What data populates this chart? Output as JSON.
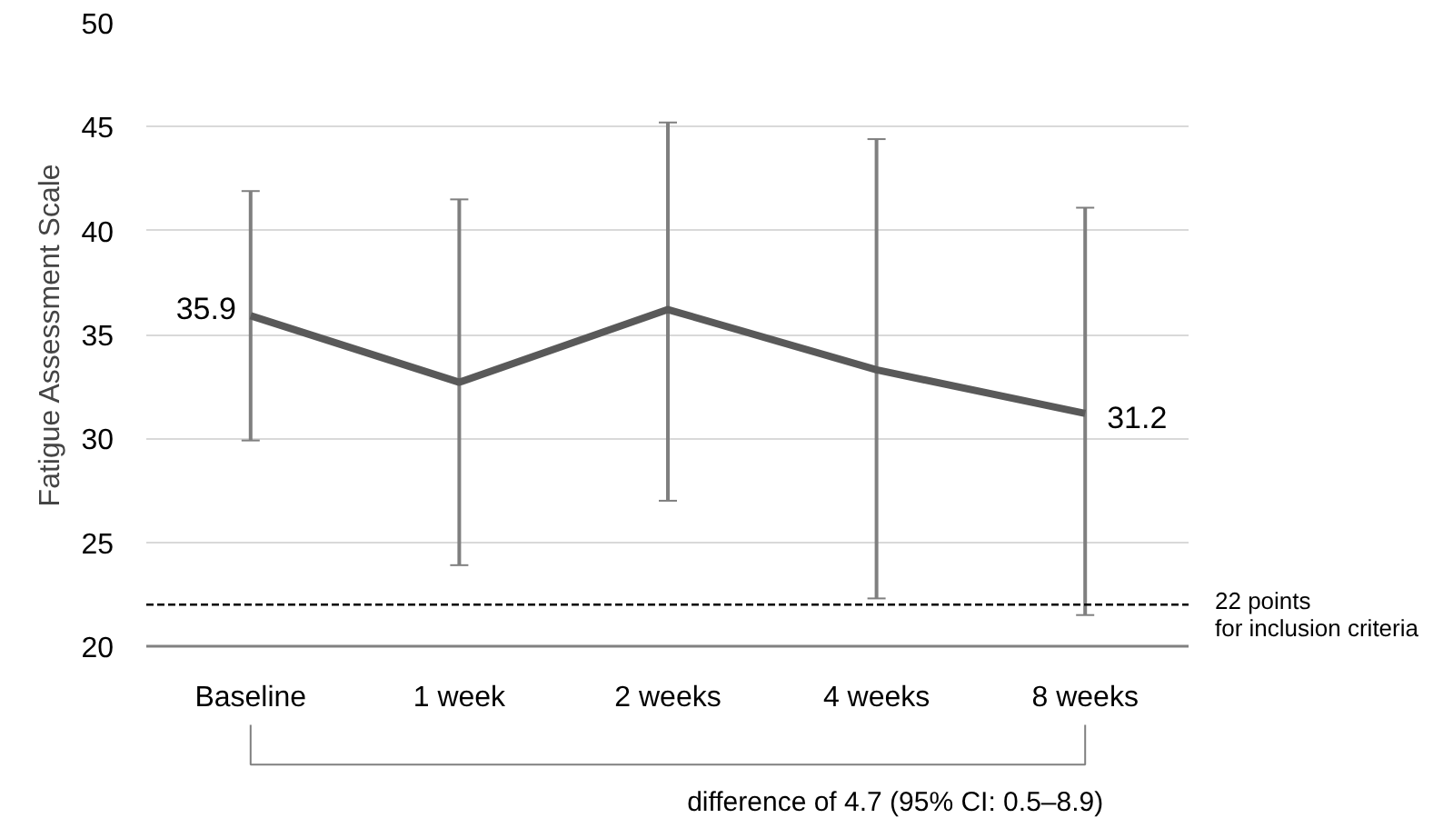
{
  "chart_data": {
    "type": "line",
    "ylabel": "Fatigue Assessment Scale",
    "categories": [
      "Baseline",
      "1 week",
      "2 weeks",
      "4 weeks",
      "8 weeks"
    ],
    "series": [
      {
        "color": "#595959",
        "values": [
          35.9,
          32.7,
          36.2,
          33.3,
          31.2
        ],
        "errors": [
          [
            29.9,
            41.9
          ],
          [
            23.9,
            41.5
          ],
          [
            27.0,
            45.2
          ],
          [
            22.3,
            44.4
          ],
          [
            21.5,
            41.1
          ]
        ],
        "value_labels": [
          "35.9",
          null,
          null,
          null,
          "31.2"
        ]
      }
    ],
    "ylim": [
      20,
      50
    ],
    "yticks": [
      20,
      25,
      30,
      35,
      40,
      45,
      50
    ],
    "grid": "y",
    "marker": "none",
    "line_style": "solid",
    "ref_lines": [
      {
        "axis": "y",
        "value": 22,
        "label": "22 points\nfor inclusion criteria",
        "color": "#000000",
        "line_style": "dashed"
      }
    ],
    "annotations": [
      "difference of 4.7 (95% CI: 0.5–8.9)"
    ]
  }
}
